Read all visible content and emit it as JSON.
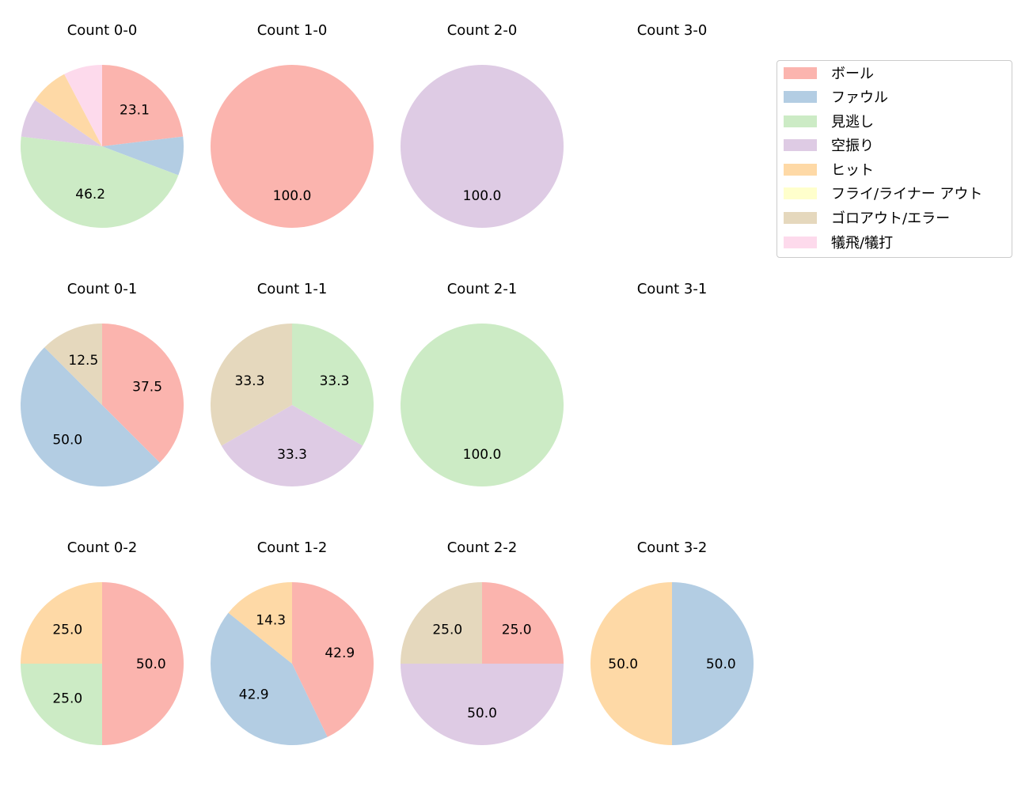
{
  "chart_data": {
    "type": "pie",
    "title": "",
    "legend": {
      "position": "upper right",
      "entries": [
        {
          "label": "ボール",
          "color": "#fbb4ae"
        },
        {
          "label": "ファウル",
          "color": "#b3cde3"
        },
        {
          "label": "見逃し",
          "color": "#ccebc5"
        },
        {
          "label": "空振り",
          "color": "#decbe4"
        },
        {
          "label": "ヒット",
          "color": "#fed9a6"
        },
        {
          "label": "フライ/ライナー アウト",
          "color": "#ffffcc"
        },
        {
          "label": "ゴロアウト/エラー",
          "color": "#e5d8bd"
        },
        {
          "label": "犠飛/犠打",
          "color": "#fddaec"
        }
      ]
    },
    "categories": [
      "ボール",
      "ファウル",
      "見逃し",
      "空振り",
      "ヒット",
      "フライ/ライナー アウト",
      "ゴロアウト/エラー",
      "犠飛/犠打"
    ],
    "panels": [
      {
        "title": "Count 0-0",
        "row": 0,
        "col": 0,
        "values": [
          23.1,
          7.7,
          46.2,
          7.7,
          7.7,
          0,
          0,
          7.7
        ],
        "labels_shown": [
          true,
          false,
          true,
          false,
          false,
          false,
          false,
          false
        ]
      },
      {
        "title": "Count 1-0",
        "row": 0,
        "col": 1,
        "values": [
          100.0,
          0,
          0,
          0,
          0,
          0,
          0,
          0
        ],
        "labels_shown": [
          true,
          false,
          false,
          false,
          false,
          false,
          false,
          false
        ]
      },
      {
        "title": "Count 2-0",
        "row": 0,
        "col": 2,
        "values": [
          0,
          0,
          0,
          100.0,
          0,
          0,
          0,
          0
        ],
        "labels_shown": [
          false,
          false,
          false,
          true,
          false,
          false,
          false,
          false
        ]
      },
      {
        "title": "Count 3-0",
        "row": 0,
        "col": 3,
        "values": [
          0,
          0,
          0,
          0,
          0,
          0,
          0,
          0
        ],
        "labels_shown": [
          false,
          false,
          false,
          false,
          false,
          false,
          false,
          false
        ]
      },
      {
        "title": "Count 0-1",
        "row": 1,
        "col": 0,
        "values": [
          37.5,
          50.0,
          0,
          0,
          0,
          0,
          12.5,
          0
        ],
        "labels_shown": [
          true,
          true,
          false,
          false,
          false,
          false,
          true,
          false
        ]
      },
      {
        "title": "Count 1-1",
        "row": 1,
        "col": 1,
        "values": [
          0,
          0,
          33.3,
          33.3,
          0,
          0,
          33.3,
          0
        ],
        "labels_shown": [
          false,
          false,
          true,
          true,
          false,
          false,
          true,
          false
        ]
      },
      {
        "title": "Count 2-1",
        "row": 1,
        "col": 2,
        "values": [
          0,
          0,
          100.0,
          0,
          0,
          0,
          0,
          0
        ],
        "labels_shown": [
          false,
          false,
          true,
          false,
          false,
          false,
          false,
          false
        ]
      },
      {
        "title": "Count 3-1",
        "row": 1,
        "col": 3,
        "values": [
          0,
          0,
          0,
          0,
          0,
          0,
          0,
          0
        ],
        "labels_shown": [
          false,
          false,
          false,
          false,
          false,
          false,
          false,
          false
        ]
      },
      {
        "title": "Count 0-2",
        "row": 2,
        "col": 0,
        "values": [
          50.0,
          0,
          25.0,
          0,
          25.0,
          0,
          0,
          0
        ],
        "labels_shown": [
          true,
          false,
          true,
          false,
          true,
          false,
          false,
          false
        ]
      },
      {
        "title": "Count 1-2",
        "row": 2,
        "col": 1,
        "values": [
          42.9,
          42.9,
          0,
          0,
          14.3,
          0,
          0,
          0
        ],
        "labels_shown": [
          true,
          true,
          false,
          false,
          true,
          false,
          false,
          false
        ]
      },
      {
        "title": "Count 2-2",
        "row": 2,
        "col": 2,
        "values": [
          25.0,
          0,
          0,
          50.0,
          0,
          0,
          25.0,
          0
        ],
        "labels_shown": [
          true,
          false,
          false,
          true,
          false,
          false,
          true,
          false
        ]
      },
      {
        "title": "Count 3-2",
        "row": 2,
        "col": 3,
        "values": [
          0,
          50.0,
          0,
          0,
          50.0,
          0,
          0,
          0
        ],
        "labels_shown": [
          false,
          true,
          false,
          false,
          true,
          false,
          false,
          false
        ]
      }
    ],
    "start_angle_deg": 90,
    "direction": "clockwise",
    "label_format": "%.1f"
  }
}
